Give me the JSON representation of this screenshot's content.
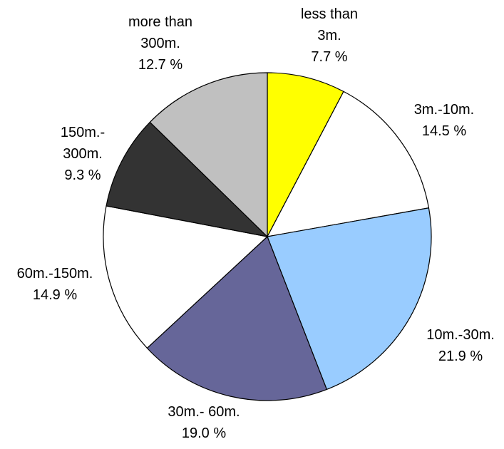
{
  "chart_data": {
    "type": "pie",
    "slices": [
      {
        "label_lines": [
          "less than",
          "3m."
        ],
        "percent_text": "7.7 %",
        "value": 7.7,
        "color": "#ffff00"
      },
      {
        "label_lines": [
          "3m.-10m."
        ],
        "percent_text": "14.5 %",
        "value": 14.5,
        "color": "#ffffff"
      },
      {
        "label_lines": [
          "10m.-30m."
        ],
        "percent_text": "21.9 %",
        "value": 21.9,
        "color": "#99ccff"
      },
      {
        "label_lines": [
          "30m.- 60m."
        ],
        "percent_text": "19.0 %",
        "value": 19.0,
        "color": "#666699"
      },
      {
        "label_lines": [
          "60m.-150m."
        ],
        "percent_text": "14.9 %",
        "value": 14.9,
        "color": "#ffffff"
      },
      {
        "label_lines": [
          "150m.-",
          "300m."
        ],
        "percent_text": "9.3 %",
        "value": 9.3,
        "color": "#333333"
      },
      {
        "label_lines": [
          "more than",
          "300m."
        ],
        "percent_text": "12.7 %",
        "value": 12.7,
        "color": "#c0c0c0"
      }
    ],
    "start_angle": "12 o'clock",
    "direction": "clockwise",
    "legend": "none"
  }
}
